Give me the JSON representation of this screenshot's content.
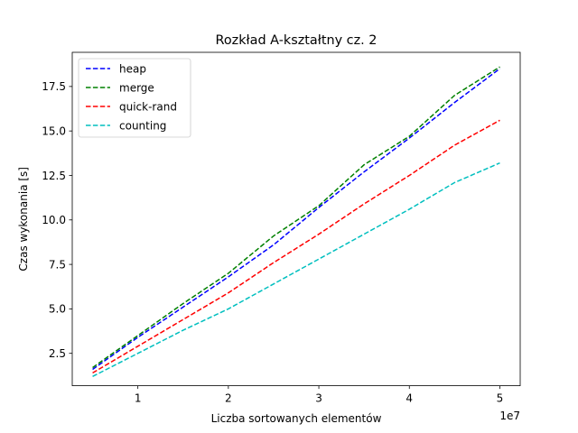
{
  "chart_data": {
    "type": "line",
    "title": "Rozkład A-kształtny cz. 2",
    "xlabel": "Liczba sortowanych elementów",
    "ylabel": "Czas wykonania [s]",
    "x_offset_label": "1e7",
    "x_scale": 10000000,
    "xlim": [
      2750000,
      52250000
    ],
    "ylim": [
      0.68,
      19.42
    ],
    "x_ticks": [
      10000000,
      20000000,
      30000000,
      40000000,
      50000000
    ],
    "x_tick_labels": [
      "1",
      "2",
      "3",
      "4",
      "5"
    ],
    "y_ticks": [
      2.5,
      5.0,
      7.5,
      10.0,
      12.5,
      15.0,
      17.5
    ],
    "y_tick_labels": [
      "2.5",
      "5.0",
      "7.5",
      "10.0",
      "12.5",
      "15.0",
      "17.5"
    ],
    "grid": false,
    "legend_position": "top-left",
    "x": [
      5000000,
      10000000,
      15000000,
      20000000,
      25000000,
      30000000,
      35000000,
      40000000,
      45000000,
      50000000
    ],
    "series": [
      {
        "name": "heap",
        "color": "#0000ff",
        "values": [
          1.6,
          3.4,
          5.1,
          6.8,
          8.6,
          10.7,
          12.7,
          14.6,
          16.6,
          18.5
        ]
      },
      {
        "name": "merge",
        "color": "#008000",
        "values": [
          1.7,
          3.5,
          5.3,
          7.0,
          9.1,
          10.8,
          13.1,
          14.7,
          17.0,
          18.6
        ]
      },
      {
        "name": "quick-rand",
        "color": "#ff0000",
        "values": [
          1.4,
          2.9,
          4.4,
          5.9,
          7.6,
          9.2,
          10.9,
          12.5,
          14.2,
          15.6
        ]
      },
      {
        "name": "counting",
        "color": "#00bfbf",
        "values": [
          1.2,
          2.5,
          3.8,
          5.0,
          6.4,
          7.8,
          9.2,
          10.6,
          12.1,
          13.2
        ]
      }
    ]
  }
}
